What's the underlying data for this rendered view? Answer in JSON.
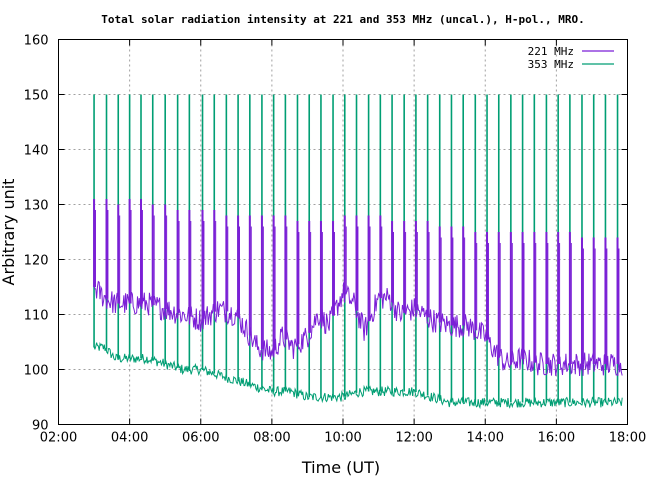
{
  "chart_data": {
    "type": "line",
    "title": "Total solar radiation intensity at 221 and 353 MHz (uncal.), H-pol., MRO.",
    "xlabel": "Time (UT)",
    "ylabel": "Arbitrary unit",
    "x_unit": "hours UT",
    "xlim": [
      2,
      18
    ],
    "ylim": [
      90,
      160
    ],
    "x_ticks": [
      2,
      4,
      6,
      8,
      10,
      12,
      14,
      16,
      18
    ],
    "x_tick_labels": [
      "02:00",
      "04:00",
      "06:00",
      "08:00",
      "10:00",
      "12:00",
      "14:00",
      "16:00",
      "18:00"
    ],
    "y_ticks": [
      90,
      100,
      110,
      120,
      130,
      140,
      150,
      160
    ],
    "y_tick_labels": [
      "90",
      "100",
      "110",
      "120",
      "130",
      "140",
      "150",
      "160"
    ],
    "grid": true,
    "legend_position": "top-right",
    "series": [
      {
        "name": "221 MHz",
        "color": "#7b1fd6",
        "baseline": {
          "x": [
            3.0,
            3.3,
            3.6,
            4.0,
            4.5,
            5.0,
            5.5,
            6.0,
            6.5,
            7.0,
            7.3,
            7.6,
            8.0,
            8.3,
            8.6,
            9.0,
            9.3,
            9.6,
            10.0,
            10.3,
            10.6,
            11.0,
            11.3,
            11.6,
            12.0,
            12.5,
            13.0,
            13.5,
            14.0,
            14.3,
            14.6,
            15.0,
            15.5,
            16.0,
            16.5,
            17.0,
            17.5,
            17.85
          ],
          "y": [
            115,
            113,
            112,
            112,
            112,
            111,
            110,
            109,
            111,
            110,
            107,
            104,
            103,
            106,
            104,
            106,
            110,
            108,
            114,
            112,
            107,
            113,
            113,
            110,
            111,
            109,
            108,
            108,
            106,
            103,
            101,
            102,
            101,
            101,
            101,
            101,
            101,
            101
          ]
        },
        "spikes": {
          "x": [
            3.0,
            3.35,
            3.68,
            4.0,
            4.32,
            4.65,
            5.0,
            5.35,
            5.68,
            6.05,
            6.38,
            6.72,
            7.05,
            7.38,
            7.72,
            8.05,
            8.38,
            8.72,
            9.05,
            9.38,
            9.72,
            10.05,
            10.38,
            10.72,
            11.05,
            11.38,
            11.72,
            12.05,
            12.38,
            12.72,
            13.05,
            13.38,
            13.72,
            14.05,
            14.38,
            14.72,
            15.05,
            15.38,
            15.72,
            16.05,
            16.38,
            16.72,
            17.05,
            17.38,
            17.72
          ],
          "y": [
            131,
            131,
            130,
            131,
            131,
            130,
            130,
            129,
            129,
            129,
            129,
            128,
            128,
            128,
            128,
            128,
            128,
            127,
            127,
            127,
            127,
            128,
            128,
            128,
            128,
            127,
            127,
            127,
            127,
            126,
            126,
            126,
            125,
            125,
            125,
            125,
            125,
            125,
            125,
            125,
            125,
            124,
            124,
            124,
            124
          ]
        }
      },
      {
        "name": "353 MHz",
        "color": "#009e73",
        "baseline": {
          "x": [
            3.0,
            3.3,
            3.6,
            4.0,
            4.5,
            5.0,
            5.5,
            6.0,
            6.5,
            7.0,
            7.5,
            8.0,
            8.5,
            9.0,
            9.5,
            10.0,
            10.5,
            11.0,
            11.5,
            12.0,
            12.5,
            13.0,
            13.5,
            14.0,
            14.5,
            15.0,
            15.5,
            16.0,
            16.5,
            17.0,
            17.5,
            17.85
          ],
          "y": [
            104,
            104,
            102,
            102,
            102,
            101,
            100,
            100,
            99,
            98,
            97,
            96,
            96,
            95,
            95,
            95,
            96,
            96,
            96,
            96,
            95,
            94,
            94,
            94,
            94,
            94,
            94,
            94,
            94,
            94,
            94,
            94
          ]
        },
        "spikes": {
          "x": [
            3.0,
            3.35,
            3.68,
            4.0,
            4.32,
            4.65,
            5.0,
            5.35,
            5.68,
            6.05,
            6.38,
            6.72,
            7.05,
            7.38,
            7.72,
            8.05,
            8.38,
            8.72,
            9.05,
            9.38,
            9.72,
            10.05,
            10.38,
            10.72,
            11.05,
            11.38,
            11.72,
            12.05,
            12.38,
            12.72,
            13.05,
            13.38,
            13.72,
            14.05,
            14.38,
            14.72,
            15.05,
            15.38,
            15.72,
            16.05,
            16.38,
            16.72,
            17.05,
            17.38,
            17.72
          ],
          "y": [
            150,
            150,
            150,
            150,
            150,
            150,
            150,
            150,
            150,
            150,
            150,
            150,
            150,
            150,
            150,
            150,
            150,
            150,
            150,
            150,
            150,
            150,
            150,
            150,
            150,
            150,
            150,
            150,
            150,
            150,
            150,
            150,
            150,
            150,
            150,
            150,
            150,
            150,
            150,
            150,
            150,
            150,
            150,
            150,
            150
          ]
        }
      }
    ]
  }
}
